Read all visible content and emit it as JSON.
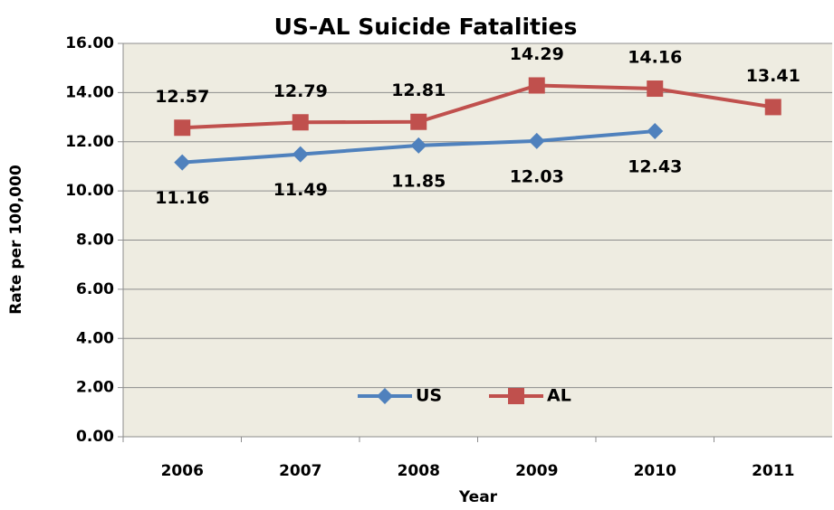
{
  "chart_data": {
    "type": "line",
    "title": "US-AL Suicide Fatalities",
    "x_label": "Year",
    "y_label": "Rate per 100,000",
    "categories": [
      "2006",
      "2007",
      "2008",
      "2009",
      "2010",
      "2011"
    ],
    "series": [
      {
        "name": "US",
        "color": "#4f81bd",
        "marker": "diamond",
        "values": [
          11.16,
          11.49,
          11.85,
          12.03,
          12.43,
          null
        ]
      },
      {
        "name": "AL",
        "color": "#c0504d",
        "marker": "square",
        "values": [
          12.57,
          12.79,
          12.81,
          14.29,
          14.16,
          13.41
        ]
      }
    ],
    "ylim": [
      0,
      16
    ],
    "yticks": [
      {
        "value": 0,
        "label": "0.00"
      },
      {
        "value": 2,
        "label": "2.00"
      },
      {
        "value": 4,
        "label": "4.00"
      },
      {
        "value": 6,
        "label": "6.00"
      },
      {
        "value": 8,
        "label": "8.00"
      },
      {
        "value": 10,
        "label": "10.00"
      },
      {
        "value": 12,
        "label": "12.00"
      },
      {
        "value": 14,
        "label": "14.00"
      },
      {
        "value": 16,
        "label": "16.00"
      }
    ],
    "grid": true,
    "legend": "bottom"
  }
}
